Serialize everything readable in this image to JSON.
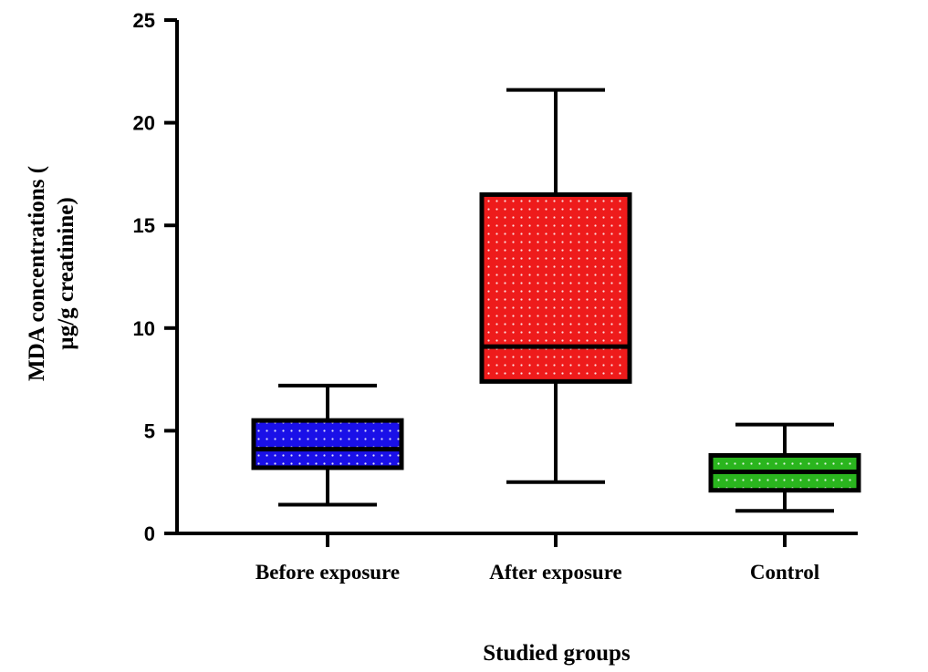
{
  "chart_data": {
    "type": "box",
    "xlabel": "Studied groups",
    "ylabel": [
      "MDA concentrations (",
      "µg/g creatinine)"
    ],
    "ylim": [
      0,
      25
    ],
    "yticks": [
      0,
      5,
      10,
      15,
      20,
      25
    ],
    "grid": false,
    "categories": [
      "Before exposure",
      "After exposure",
      "Control"
    ],
    "series": [
      {
        "min": 1.4,
        "q1": 3.2,
        "median": 4.1,
        "q3": 5.5,
        "max": 7.2,
        "color": "#1a10e8"
      },
      {
        "min": 2.5,
        "q1": 7.4,
        "median": 9.1,
        "q3": 16.5,
        "max": 21.6,
        "color": "#ee1b1b"
      },
      {
        "min": 1.1,
        "q1": 2.1,
        "median": 3.0,
        "q3": 3.8,
        "max": 5.3,
        "color": "#2ab51e"
      }
    ]
  }
}
